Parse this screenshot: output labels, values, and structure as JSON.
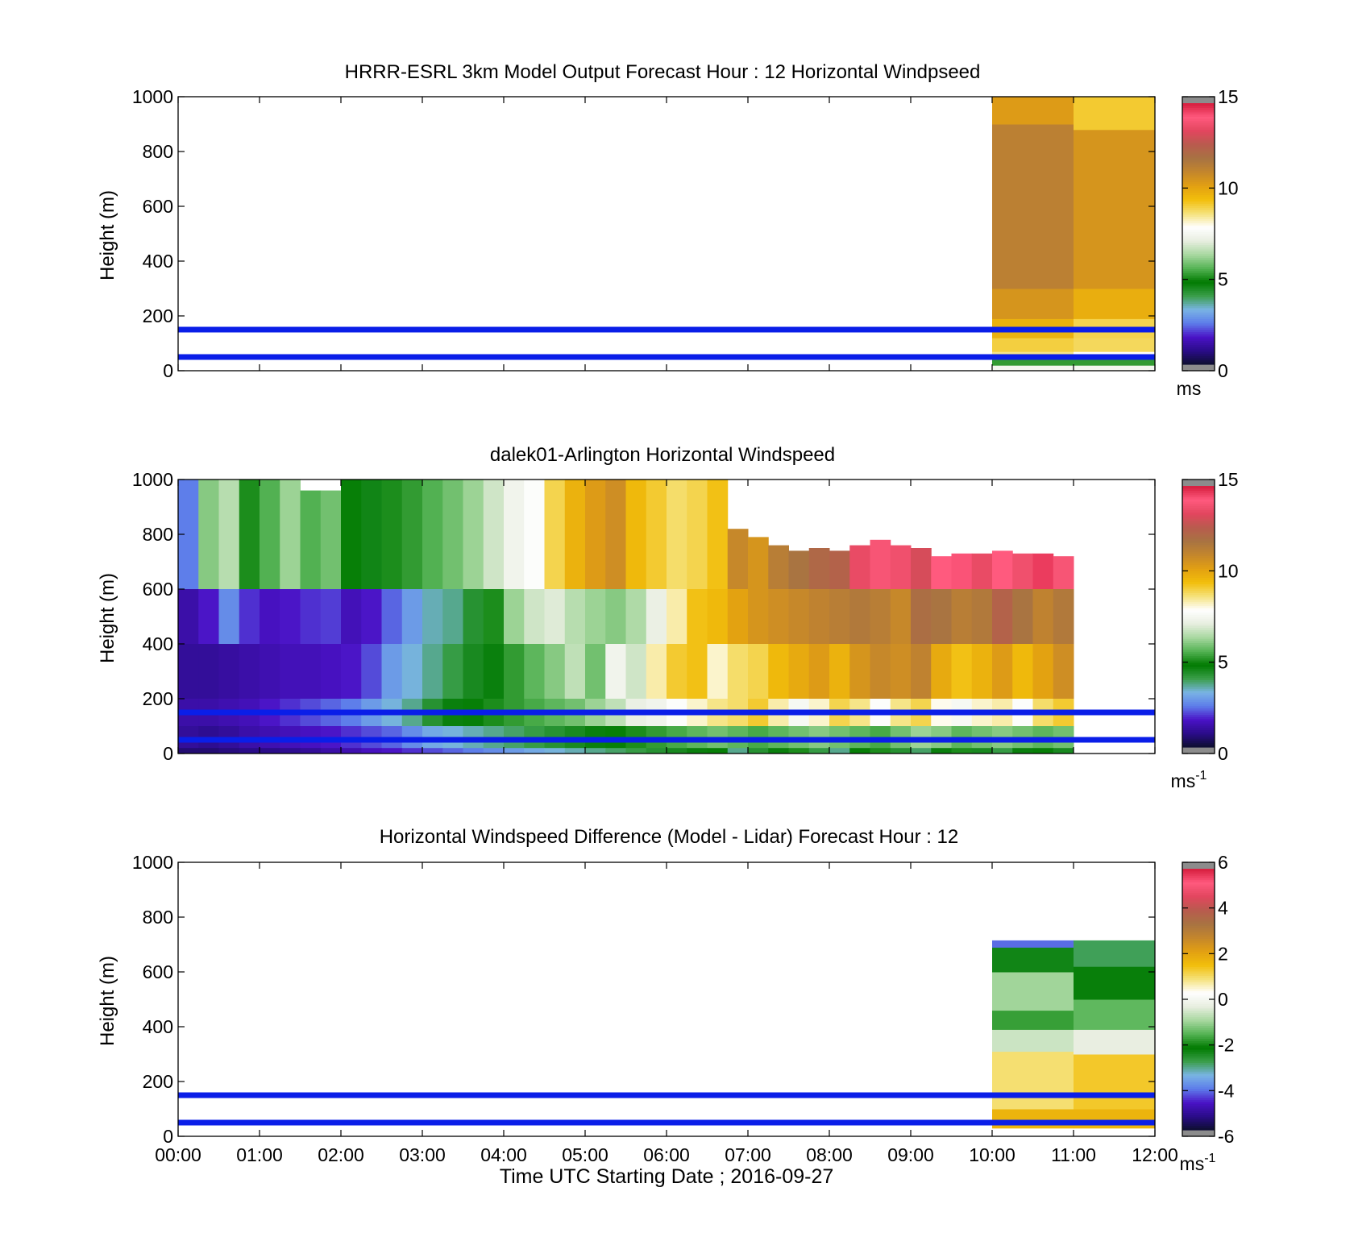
{
  "chart_data": [
    {
      "type": "heatmap",
      "title": "HRRR-ESRL 3km Model Output   Forecast Hour : 12 Horizontal Windpseed",
      "ylabel": "Height (m)",
      "xlabel": "",
      "ylim": [
        0,
        1000
      ],
      "yticks": [
        "0",
        "200",
        "400",
        "600",
        "800",
        "1000"
      ],
      "xlim_hours": [
        0,
        12
      ],
      "xticks": [],
      "colorbar": {
        "min": 0,
        "max": 15,
        "ticks": [
          "0",
          "5",
          "10",
          "15"
        ],
        "unit": "ms",
        "unit_sup": ""
      },
      "reference_lines_m": [
        50,
        150
      ],
      "data_columns": [
        {
          "time_start": "10:00",
          "time_end": "11:00",
          "profile": [
            {
              "z0": 0,
              "z1": 20,
              "v": 7.5
            },
            {
              "z0": 20,
              "z1": 45,
              "v": 5.2
            },
            {
              "z0": 45,
              "z1": 70,
              "v": 8.6
            },
            {
              "z0": 70,
              "z1": 120,
              "v": 9.1
            },
            {
              "z0": 120,
              "z1": 190,
              "v": 9.8
            },
            {
              "z0": 190,
              "z1": 300,
              "v": 10.6
            },
            {
              "z0": 300,
              "z1": 900,
              "v": 11.3
            },
            {
              "z0": 900,
              "z1": 1000,
              "v": 10.4
            }
          ]
        },
        {
          "time_start": "11:00",
          "time_end": "12:00",
          "profile": [
            {
              "z0": 0,
              "z1": 20,
              "v": 7.5
            },
            {
              "z0": 20,
              "z1": 45,
              "v": 5.2
            },
            {
              "z0": 45,
              "z1": 70,
              "v": 7.9
            },
            {
              "z0": 70,
              "z1": 120,
              "v": 8.9
            },
            {
              "z0": 120,
              "z1": 190,
              "v": 9.0
            },
            {
              "z0": 190,
              "z1": 300,
              "v": 9.9
            },
            {
              "z0": 300,
              "z1": 880,
              "v": 10.6
            },
            {
              "z0": 880,
              "z1": 1000,
              "v": 9.2
            }
          ]
        }
      ]
    },
    {
      "type": "heatmap",
      "title": "dalek01-Arlington  Horizontal Windspeed",
      "ylabel": "Height (m)",
      "xlabel": "",
      "ylim": [
        0,
        1000
      ],
      "yticks": [
        "0",
        "200",
        "400",
        "600",
        "800",
        "1000"
      ],
      "xlim_hours": [
        0,
        12
      ],
      "xticks": [],
      "colorbar": {
        "min": 0,
        "max": 15,
        "ticks": [
          "0",
          "5",
          "10",
          "15"
        ],
        "unit": "ms",
        "unit_sup": "-1"
      },
      "reference_lines_m": [
        50,
        150
      ],
      "time_bin_hours": 0.25,
      "column_top_m": [
        1000,
        1000,
        1000,
        1000,
        1000,
        1000,
        960,
        960,
        1000,
        1000,
        1000,
        1000,
        1000,
        1000,
        1000,
        1000,
        1000,
        1000,
        1000,
        1000,
        1000,
        1000,
        1000,
        1000,
        1000,
        1000,
        1000,
        820,
        790,
        760,
        740,
        750,
        740,
        760,
        780,
        760,
        750,
        720,
        730,
        730,
        740,
        730,
        730,
        720
      ],
      "layers": [
        {
          "z0": 600,
          "z1": 1000,
          "values": [
            2.4,
            6.0,
            6.5,
            5.0,
            5.5,
            6.2,
            5.5,
            5.8,
            4.8,
            4.5,
            5.0,
            5.2,
            5.5,
            5.8,
            6.2,
            6.8,
            7.4,
            7.8,
            9.0,
            9.8,
            10.4,
            10.8,
            9.6,
            9.2,
            8.8,
            9.0,
            9.4,
            11.0,
            10.6,
            11.4,
            11.8,
            12.2,
            12.4,
            13.6,
            14.0,
            13.8,
            13.2,
            14.2,
            14.3,
            13.6,
            14.2,
            13.8,
            14.6,
            14.0
          ]
        },
        {
          "z0": 400,
          "z1": 600,
          "values": [
            1.2,
            1.6,
            2.6,
            1.8,
            1.5,
            1.6,
            1.8,
            1.9,
            1.4,
            1.6,
            2.2,
            2.8,
            3.4,
            3.6,
            4.2,
            5.0,
            6.2,
            6.8,
            7.0,
            6.5,
            6.2,
            6.0,
            6.4,
            7.2,
            8.4,
            9.4,
            9.6,
            10.2,
            10.6,
            10.8,
            11.0,
            11.2,
            11.4,
            11.6,
            11.4,
            11.0,
            12.0,
            11.8,
            11.4,
            11.6,
            12.4,
            11.8,
            11.2,
            11.6
          ]
        },
        {
          "z0": 200,
          "z1": 400,
          "values": [
            1.0,
            1.0,
            1.1,
            1.2,
            1.3,
            1.4,
            1.4,
            1.5,
            1.6,
            2.0,
            2.8,
            3.2,
            3.6,
            4.0,
            4.4,
            4.6,
            5.2,
            5.6,
            6.0,
            6.6,
            5.8,
            7.4,
            6.8,
            8.4,
            9.2,
            9.4,
            8.2,
            8.8,
            9.0,
            9.6,
            10.0,
            10.4,
            9.8,
            10.6,
            11.0,
            10.8,
            11.2,
            10.0,
            9.4,
            9.8,
            10.4,
            9.6,
            10.2,
            10.8
          ]
        },
        {
          "z0": 100,
          "z1": 200,
          "values": [
            1.2,
            1.2,
            1.3,
            1.4,
            1.6,
            1.8,
            2.0,
            2.2,
            2.4,
            2.8,
            3.2,
            3.6,
            4.2,
            4.6,
            4.8,
            5.0,
            5.2,
            5.4,
            5.6,
            5.8,
            6.2,
            6.6,
            7.2,
            7.4,
            7.8,
            8.2,
            8.6,
            8.8,
            9.2,
            8.4,
            7.6,
            8.2,
            9.0,
            8.6,
            7.8,
            8.6,
            9.0,
            8.0,
            7.6,
            8.2,
            8.4,
            7.8,
            8.8,
            9.2
          ]
        },
        {
          "z0": 20,
          "z1": 100,
          "values": [
            1.0,
            0.9,
            1.0,
            1.2,
            1.3,
            1.4,
            1.5,
            1.6,
            1.8,
            2.0,
            2.2,
            2.6,
            3.0,
            3.2,
            3.4,
            3.6,
            3.8,
            4.0,
            4.2,
            4.4,
            4.6,
            4.8,
            5.0,
            5.2,
            5.4,
            5.6,
            5.8,
            5.6,
            5.4,
            5.6,
            5.8,
            6.0,
            5.8,
            5.6,
            5.4,
            5.8,
            6.2,
            6.0,
            5.6,
            5.8,
            6.0,
            5.8,
            5.6,
            5.8
          ]
        },
        {
          "z0": 0,
          "z1": 20,
          "values": [
            0.6,
            0.6,
            0.7,
            0.8,
            0.8,
            0.9,
            1.0,
            1.2,
            1.3,
            1.5,
            1.6,
            1.8,
            2.0,
            2.2,
            2.4,
            2.6,
            2.8,
            3.0,
            3.2,
            3.4,
            3.6,
            3.8,
            4.0,
            4.2,
            4.4,
            4.6,
            4.8,
            3.6,
            4.2,
            4.6,
            5.0,
            4.0,
            3.6,
            4.8,
            5.0,
            4.2,
            3.8,
            4.6,
            5.0,
            4.4,
            4.0,
            4.6,
            4.8,
            4.4
          ]
        }
      ]
    },
    {
      "type": "heatmap",
      "title": "Horizontal Windspeed Difference (Model - Lidar) Forecast Hour : 12",
      "ylabel": "Height (m)",
      "xlabel": "Time UTC  Starting Date ; 2016-09-27",
      "ylim": [
        0,
        1000
      ],
      "yticks": [
        "0",
        "200",
        "400",
        "600",
        "800",
        "1000"
      ],
      "xlim_hours": [
        0,
        12
      ],
      "xticks": [
        "00:00",
        "01:00",
        "02:00",
        "03:00",
        "04:00",
        "05:00",
        "06:00",
        "07:00",
        "08:00",
        "09:00",
        "10:00",
        "11:00",
        "12:00"
      ],
      "colorbar": {
        "min": -6,
        "max": 6,
        "ticks": [
          "-6",
          "-4",
          "-2",
          "0",
          "2",
          "4",
          "6"
        ],
        "unit": "ms",
        "unit_sup": "-1"
      },
      "reference_lines_m": [
        50,
        150
      ],
      "data_columns": [
        {
          "time_start": "10:00",
          "time_end": "11:00",
          "profile": [
            {
              "z0": 30,
              "z1": 100,
              "v": 1.8
            },
            {
              "z0": 100,
              "z1": 310,
              "v": 1.0
            },
            {
              "z0": 310,
              "z1": 390,
              "v": -0.6
            },
            {
              "z0": 390,
              "z1": 460,
              "v": -1.8
            },
            {
              "z0": 460,
              "z1": 600,
              "v": -1.0
            },
            {
              "z0": 600,
              "z1": 690,
              "v": -2.4
            },
            {
              "z0": 690,
              "z1": 715,
              "v": -4.2
            }
          ]
        },
        {
          "time_start": "11:00",
          "time_end": "12:00",
          "profile": [
            {
              "z0": 30,
              "z1": 100,
              "v": 1.8
            },
            {
              "z0": 100,
              "z1": 300,
              "v": 1.4
            },
            {
              "z0": 300,
              "z1": 390,
              "v": -0.3
            },
            {
              "z0": 390,
              "z1": 500,
              "v": -1.5
            },
            {
              "z0": 500,
              "z1": 620,
              "v": -2.3
            },
            {
              "z0": 620,
              "z1": 715,
              "v": -2.9
            }
          ]
        }
      ]
    }
  ],
  "colors": {
    "reference_line": "#0a1ee8",
    "colormap_stops": [
      "#0d0e2e",
      "#2a0c88",
      "#4a12c6",
      "#5d7cea",
      "#79b4e4",
      "#3a9e4a",
      "#007a00",
      "#55b355",
      "#a8d8a0",
      "#e8eee0",
      "#ffffff",
      "#f5e27a",
      "#f2be0b",
      "#e2a012",
      "#c4862c",
      "#a87342",
      "#b85b4e",
      "#e2465e",
      "#ff5a7e",
      "#d61e3e"
    ],
    "out_of_range": "#8c8c8c"
  }
}
